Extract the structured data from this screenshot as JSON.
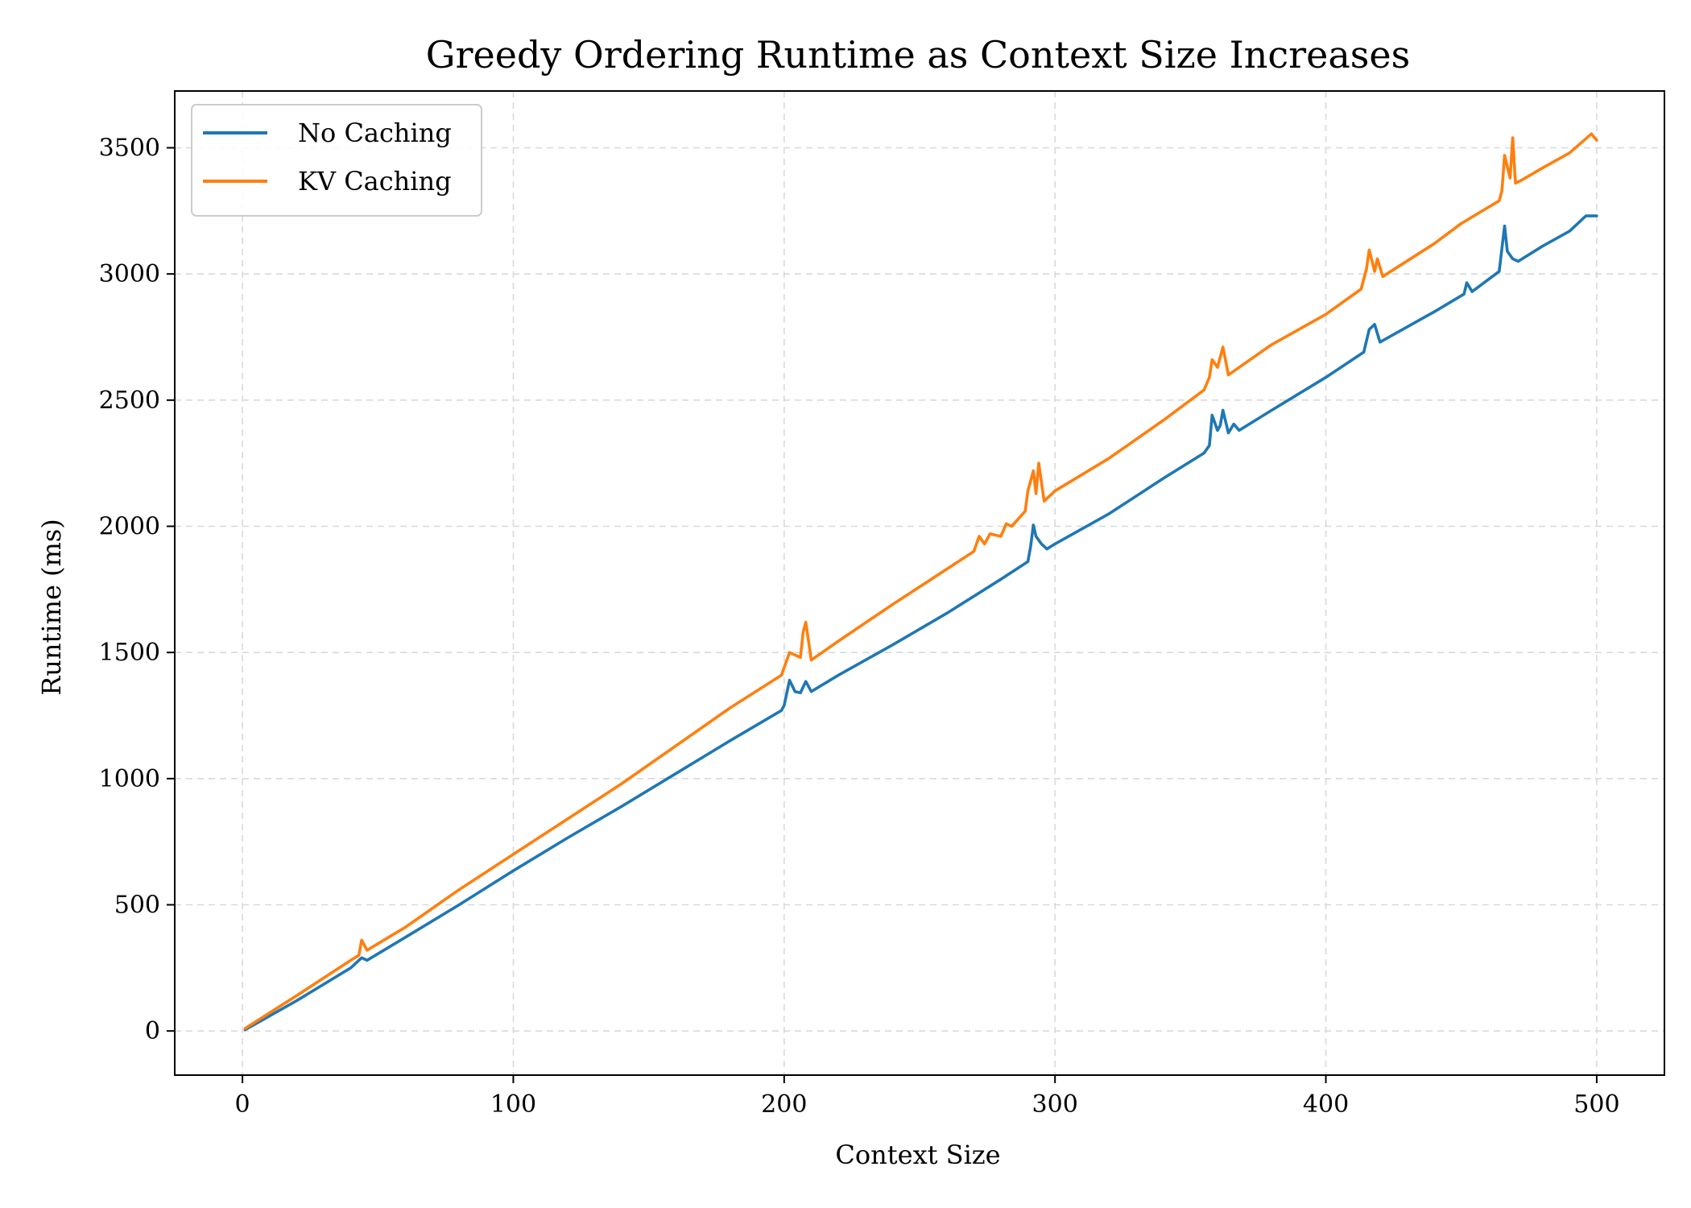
{
  "chart_data": {
    "type": "line",
    "title": "Greedy Ordering Runtime as Context Size Increases",
    "xlabel": "Context Size",
    "ylabel": "Runtime (ms)",
    "xlim": [
      -25,
      525
    ],
    "ylim": [
      -175,
      3725
    ],
    "xticks": [
      0,
      100,
      200,
      300,
      400,
      500
    ],
    "yticks": [
      0,
      500,
      1000,
      1500,
      2000,
      2500,
      3000,
      3500
    ],
    "grid": true,
    "legend_position": "top-left",
    "series": [
      {
        "name": "No Caching",
        "color": "#1f77b4",
        "points": [
          [
            1,
            5
          ],
          [
            20,
            120
          ],
          [
            40,
            250
          ],
          [
            44,
            290
          ],
          [
            46,
            280
          ],
          [
            60,
            370
          ],
          [
            80,
            500
          ],
          [
            100,
            635
          ],
          [
            120,
            765
          ],
          [
            140,
            890
          ],
          [
            160,
            1020
          ],
          [
            180,
            1150
          ],
          [
            199,
            1270
          ],
          [
            200,
            1290
          ],
          [
            202,
            1390
          ],
          [
            204,
            1345
          ],
          [
            206,
            1340
          ],
          [
            208,
            1385
          ],
          [
            210,
            1345
          ],
          [
            220,
            1410
          ],
          [
            240,
            1530
          ],
          [
            260,
            1655
          ],
          [
            280,
            1790
          ],
          [
            290,
            1860
          ],
          [
            291,
            1920
          ],
          [
            292,
            2005
          ],
          [
            293,
            1960
          ],
          [
            295,
            1930
          ],
          [
            297,
            1910
          ],
          [
            300,
            1930
          ],
          [
            320,
            2050
          ],
          [
            340,
            2190
          ],
          [
            355,
            2290
          ],
          [
            357,
            2320
          ],
          [
            358,
            2440
          ],
          [
            360,
            2380
          ],
          [
            361,
            2400
          ],
          [
            362,
            2460
          ],
          [
            364,
            2370
          ],
          [
            366,
            2405
          ],
          [
            368,
            2380
          ],
          [
            380,
            2460
          ],
          [
            400,
            2590
          ],
          [
            414,
            2690
          ],
          [
            416,
            2780
          ],
          [
            418,
            2800
          ],
          [
            420,
            2730
          ],
          [
            440,
            2850
          ],
          [
            451,
            2920
          ],
          [
            452,
            2965
          ],
          [
            454,
            2930
          ],
          [
            464,
            3010
          ],
          [
            466,
            3190
          ],
          [
            467,
            3090
          ],
          [
            469,
            3060
          ],
          [
            471,
            3050
          ],
          [
            480,
            3110
          ],
          [
            490,
            3170
          ],
          [
            496,
            3230
          ],
          [
            500,
            3230
          ]
        ]
      },
      {
        "name": "KV Caching",
        "color": "#ff7f0e",
        "points": [
          [
            1,
            10
          ],
          [
            20,
            140
          ],
          [
            40,
            280
          ],
          [
            43,
            300
          ],
          [
            44,
            360
          ],
          [
            46,
            320
          ],
          [
            60,
            410
          ],
          [
            80,
            560
          ],
          [
            100,
            700
          ],
          [
            120,
            840
          ],
          [
            140,
            980
          ],
          [
            160,
            1130
          ],
          [
            180,
            1280
          ],
          [
            199,
            1410
          ],
          [
            200,
            1440
          ],
          [
            202,
            1500
          ],
          [
            206,
            1480
          ],
          [
            207,
            1580
          ],
          [
            208,
            1620
          ],
          [
            210,
            1470
          ],
          [
            220,
            1545
          ],
          [
            240,
            1690
          ],
          [
            260,
            1830
          ],
          [
            270,
            1900
          ],
          [
            272,
            1960
          ],
          [
            274,
            1930
          ],
          [
            276,
            1970
          ],
          [
            280,
            1960
          ],
          [
            282,
            2010
          ],
          [
            284,
            2000
          ],
          [
            289,
            2060
          ],
          [
            290,
            2140
          ],
          [
            292,
            2220
          ],
          [
            293,
            2130
          ],
          [
            294,
            2250
          ],
          [
            296,
            2100
          ],
          [
            300,
            2140
          ],
          [
            320,
            2270
          ],
          [
            340,
            2420
          ],
          [
            355,
            2540
          ],
          [
            357,
            2590
          ],
          [
            358,
            2660
          ],
          [
            360,
            2630
          ],
          [
            362,
            2710
          ],
          [
            364,
            2600
          ],
          [
            366,
            2615
          ],
          [
            380,
            2720
          ],
          [
            400,
            2840
          ],
          [
            413,
            2940
          ],
          [
            415,
            3020
          ],
          [
            416,
            3095
          ],
          [
            418,
            3010
          ],
          [
            419,
            3060
          ],
          [
            421,
            2990
          ],
          [
            440,
            3120
          ],
          [
            450,
            3200
          ],
          [
            464,
            3290
          ],
          [
            465,
            3330
          ],
          [
            466,
            3470
          ],
          [
            468,
            3380
          ],
          [
            469,
            3540
          ],
          [
            470,
            3360
          ],
          [
            472,
            3370
          ],
          [
            480,
            3420
          ],
          [
            490,
            3480
          ],
          [
            498,
            3555
          ],
          [
            500,
            3530
          ]
        ]
      }
    ]
  }
}
